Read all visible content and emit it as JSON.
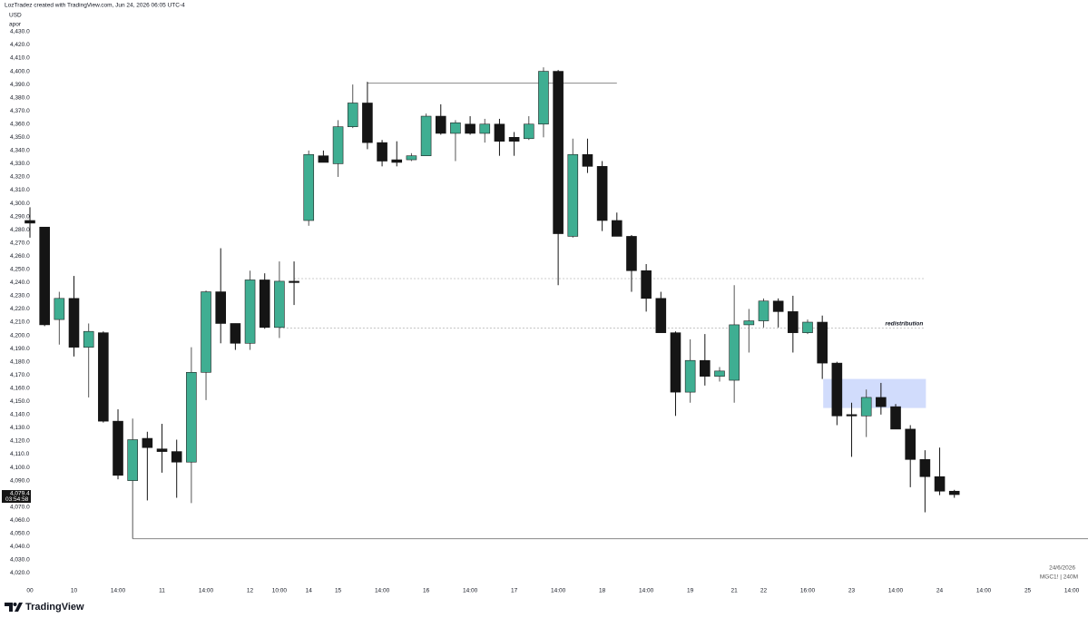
{
  "header": {
    "credit": "LozTradez created with TradingView.com, Jun 24, 2026 06:05 UTC-4",
    "currency": "USD",
    "label": "apor"
  },
  "chart_data": {
    "type": "candlestick",
    "categories": [
      "00",
      null,
      null,
      "10",
      null,
      null,
      "14:00",
      null,
      null,
      "11",
      null,
      null,
      "14:00",
      null,
      null,
      "12",
      null,
      "10:00",
      null,
      "14",
      null,
      "15",
      null,
      null,
      "14:00",
      null,
      null,
      "16",
      null,
      null,
      "14:00",
      null,
      null,
      "17",
      null,
      null,
      "14:00",
      null,
      null,
      "18",
      null,
      null,
      "14:00",
      null,
      null,
      "19",
      null,
      null,
      "21",
      null,
      "22",
      null,
      null,
      "16:00",
      null,
      null,
      "23",
      null,
      null,
      "14:00",
      null,
      null,
      "24",
      null,
      null,
      "14:00",
      null,
      null,
      "25",
      null,
      null,
      "14:00"
    ],
    "open": [
      4287,
      4282,
      4212,
      4228,
      4191,
      4202,
      4135,
      4090,
      4122,
      4114,
      4112,
      4104,
      4172,
      4233,
      4209,
      4194,
      4242,
      4206,
      4241,
      4287,
      4336,
      4330,
      4358,
      4376,
      4346,
      4333,
      4333,
      4336,
      4366,
      4353,
      4360,
      4353,
      4360,
      4350,
      4349,
      4360,
      4400,
      4275,
      4337,
      4328,
      4287,
      4275,
      4249,
      4228,
      4202,
      4157,
      4181,
      4169,
      4166,
      4208,
      4211,
      4226,
      4218,
      4202,
      4210,
      4179,
      4140,
      4139,
      4153,
      4146,
      4129,
      4106,
      4093,
      4082,
      null,
      null,
      null,
      null,
      null,
      null,
      null,
      null
    ],
    "high": [
      4297,
      4282,
      4233,
      4245,
      4209,
      4203,
      4144,
      4137,
      4127,
      4133,
      4121,
      4191,
      4234,
      4266,
      4209,
      4249,
      4247,
      4256,
      4256,
      4340,
      4340,
      4363,
      4390,
      4392,
      4348,
      4347,
      4338,
      4368,
      4375,
      4363,
      4366,
      4364,
      4364,
      4354,
      4366,
      4403,
      4401,
      4349,
      4349,
      4332,
      4293,
      4276,
      4254,
      4233,
      4203,
      4197,
      4201,
      4176,
      4238,
      4220,
      4228,
      4228,
      4230,
      4212,
      4215,
      4180,
      4149,
      4159,
      4164,
      4148,
      4132,
      4113,
      4115,
      4083,
      null,
      null,
      null,
      null,
      null,
      null,
      null,
      null
    ],
    "low": [
      4274,
      4207,
      4193,
      4184,
      4153,
      4134,
      4091,
      4046,
      4075,
      4096,
      4077,
      4073,
      4151,
      4194,
      4189,
      4189,
      4205,
      4198,
      4223,
      4283,
      4331,
      4320,
      4357,
      4341,
      4328,
      4328,
      4332,
      4336,
      4352,
      4332,
      4352,
      4346,
      4336,
      4336,
      4348,
      4350,
      4238,
      4274,
      4323,
      4279,
      4275,
      4233,
      4218,
      4202,
      4139,
      4149,
      4162,
      4165,
      4149,
      4187,
      4206,
      4206,
      4187,
      4201,
      4167,
      4132,
      4108,
      4123,
      4140,
      4129,
      4085,
      4066,
      4079,
      4077,
      null,
      null,
      null,
      null,
      null,
      null,
      null,
      null
    ],
    "close": [
      4285,
      4208,
      4228,
      4191,
      4203,
      4135,
      4094,
      4121,
      4115,
      4112,
      4104,
      4172,
      4233,
      4209,
      4194,
      4242,
      4206,
      4241,
      4240,
      4337,
      4331,
      4358,
      4376,
      4346,
      4332,
      4331,
      4336,
      4366,
      4353,
      4361,
      4353,
      4360,
      4347,
      4347,
      4360,
      4400,
      4277,
      4337,
      4328,
      4287,
      4275,
      4249,
      4228,
      4202,
      4157,
      4181,
      4169,
      4173,
      4208,
      4211,
      4226,
      4218,
      4202,
      4210,
      4179,
      4139,
      4139,
      4153,
      4146,
      4129,
      4106,
      4093,
      4082,
      4079.4,
      null,
      null,
      null,
      null,
      null,
      null,
      null,
      null
    ],
    "up_color": "#3fae92",
    "down_color": "#151515",
    "ylim": [
      4010,
      4454
    ],
    "yticks": [
      {
        "value": 4020,
        "label": "4,020.0"
      },
      {
        "value": 4030,
        "label": "4,030.0"
      },
      {
        "value": 4040,
        "label": "4,040.0"
      },
      {
        "value": 4050,
        "label": "4,050.0"
      },
      {
        "value": 4060,
        "label": "4,060.0"
      },
      {
        "value": 4070,
        "label": "4,070.0"
      },
      {
        "value": 4090,
        "label": "4,090.0"
      },
      {
        "value": 4100,
        "label": "4,100.0"
      },
      {
        "value": 4110,
        "label": "4,110.0"
      },
      {
        "value": 4120,
        "label": "4,120.0"
      },
      {
        "value": 4130,
        "label": "4,130.0"
      },
      {
        "value": 4140,
        "label": "4,140.0"
      },
      {
        "value": 4150,
        "label": "4,150.0"
      },
      {
        "value": 4160,
        "label": "4,160.0"
      },
      {
        "value": 4170,
        "label": "4,170.0"
      },
      {
        "value": 4180,
        "label": "4,180.0"
      },
      {
        "value": 4190,
        "label": "4,190.0"
      },
      {
        "value": 4200,
        "label": "4,200.0"
      },
      {
        "value": 4210,
        "label": "4,210.0"
      },
      {
        "value": 4220,
        "label": "4,220.0"
      },
      {
        "value": 4230,
        "label": "4,230.0"
      },
      {
        "value": 4240,
        "label": "4,240.0"
      },
      {
        "value": 4250,
        "label": "4,250.0"
      },
      {
        "value": 4260,
        "label": "4,260.0"
      },
      {
        "value": 4270,
        "label": "4,270.0"
      },
      {
        "value": 4280,
        "label": "4,280.0"
      },
      {
        "value": 4290,
        "label": "4,290.0"
      },
      {
        "value": 4300,
        "label": "4,300.0"
      },
      {
        "value": 4310,
        "label": "4,310.0"
      },
      {
        "value": 4320,
        "label": "4,320.0"
      },
      {
        "value": 4330,
        "label": "4,330.0"
      },
      {
        "value": 4340,
        "label": "4,340.0"
      },
      {
        "value": 4350,
        "label": "4,350.0"
      },
      {
        "value": 4360,
        "label": "4,360.0"
      },
      {
        "value": 4370,
        "label": "4,370.0"
      },
      {
        "value": 4380,
        "label": "4,380.0"
      },
      {
        "value": 4390,
        "label": "4,390.0"
      },
      {
        "value": 4400,
        "label": "4,400.0"
      },
      {
        "value": 4410,
        "label": "4,410.0"
      },
      {
        "value": 4420,
        "label": "4,420.0"
      },
      {
        "value": 4430,
        "label": "4,430.0"
      }
    ],
    "hlines": [
      {
        "value": 4391,
        "x": [
          23,
          40
        ],
        "style": "solid"
      },
      {
        "value": 4243,
        "x": [
          18,
          61
        ],
        "style": "dotted"
      },
      {
        "value": 4205.5,
        "x": [
          17,
          61
        ],
        "style": "dotted",
        "label": "redistribution"
      },
      {
        "value": 4046,
        "x": [
          7,
          71
        ],
        "style": "solid"
      }
    ],
    "zone": {
      "y": [
        4145,
        4167
      ],
      "x": [
        54,
        61
      ],
      "color": "#c9d6fb"
    },
    "current_price": {
      "value": 4079.4,
      "label": "4,079.4",
      "countdown": "03:54:58"
    },
    "date": "24/6/2026",
    "symbol": "MGC1! | 240M"
  },
  "brand": "TradingView"
}
